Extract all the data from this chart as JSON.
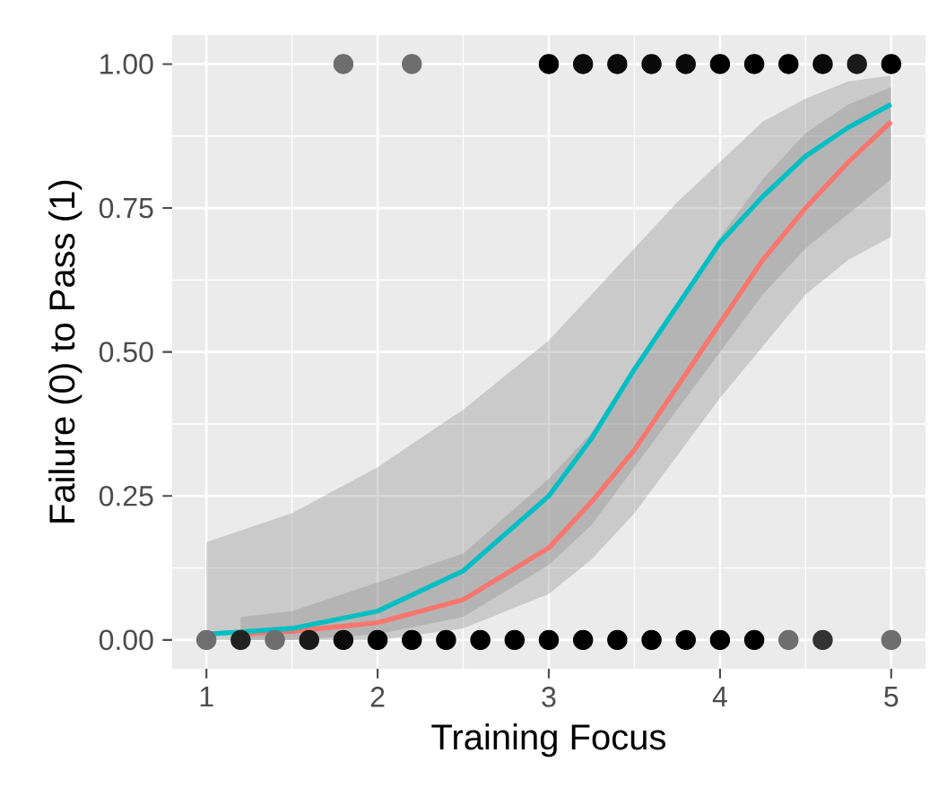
{
  "chart_data": {
    "type": "line",
    "xlabel": "Training Focus",
    "ylabel": "Failure (0) to Pass (1)",
    "xlim": [
      0.8,
      5.2
    ],
    "ylim": [
      -0.05,
      1.05
    ],
    "xticks": [
      1,
      2,
      3,
      4,
      5
    ],
    "yticks": [
      {
        "value": 0,
        "label": "0.00"
      },
      {
        "value": 0.25,
        "label": "0.25"
      },
      {
        "value": 0.5,
        "label": "0.50"
      },
      {
        "value": 0.75,
        "label": "0.75"
      },
      {
        "value": 1,
        "label": "1.00"
      }
    ],
    "grid": true,
    "series": [
      {
        "type": "scatter",
        "marker": "circle",
        "x": [
          1.8,
          2.2,
          3.0,
          3.2,
          3.4,
          3.6,
          3.8,
          4.0,
          4.2,
          4.4,
          4.6,
          4.8,
          5.0,
          1.0,
          1.2,
          1.4,
          1.6,
          1.8,
          2.0,
          2.2,
          2.4,
          2.6,
          2.8,
          3.0,
          3.2,
          3.4,
          3.6,
          3.8,
          4.0,
          4.2,
          4.4,
          4.6,
          5.0
        ],
        "values": [
          1,
          1,
          1,
          1,
          1,
          1,
          1,
          1,
          1,
          1,
          1,
          1,
          1,
          0,
          0,
          0,
          0,
          0,
          0,
          0,
          0,
          0,
          0,
          0,
          0,
          0,
          0,
          0,
          0,
          0,
          0,
          0,
          0
        ],
        "colors": [
          "#6e6e6e",
          "#6e6e6e",
          "#000000",
          "#0a0a0a",
          "#0a0a0a",
          "#0a0a0a",
          "#0a0a0a",
          "#000000",
          "#000000",
          "#000000",
          "#0a0a0a",
          "#1a1a1a",
          "#000000",
          "#6e6e6e",
          "#222222",
          "#6e6e6e",
          "#1a1a1a",
          "#0a0a0a",
          "#000000",
          "#000000",
          "#000000",
          "#000000",
          "#000000",
          "#000000",
          "#000000",
          "#000000",
          "#000000",
          "#000000",
          "#000000",
          "#000000",
          "#6e6e6e",
          "#333333",
          "#6e6e6e"
        ]
      },
      {
        "color": "#f8766d",
        "x": [
          1.2,
          1.5,
          2.0,
          2.5,
          3.0,
          3.25,
          3.5,
          3.75,
          4.0,
          4.25,
          4.5,
          4.75,
          5.0
        ],
        "values": [
          0.01,
          0.015,
          0.03,
          0.07,
          0.16,
          0.24,
          0.33,
          0.44,
          0.55,
          0.66,
          0.75,
          0.83,
          0.9
        ],
        "lower": [
          0.0,
          0.0,
          0.0,
          0.02,
          0.08,
          0.14,
          0.22,
          0.32,
          0.42,
          0.51,
          0.6,
          0.66,
          0.7
        ],
        "upper": [
          0.04,
          0.05,
          0.1,
          0.15,
          0.28,
          0.36,
          0.47,
          0.58,
          0.7,
          0.8,
          0.88,
          0.93,
          0.96
        ]
      },
      {
        "color": "#00bfc4",
        "x": [
          1.0,
          1.5,
          2.0,
          2.5,
          3.0,
          3.25,
          3.5,
          3.75,
          4.0,
          4.25,
          4.5,
          4.75,
          5.0
        ],
        "values": [
          0.01,
          0.02,
          0.05,
          0.12,
          0.25,
          0.35,
          0.47,
          0.58,
          0.69,
          0.77,
          0.84,
          0.89,
          0.93
        ],
        "lower": [
          0.0,
          0.0,
          0.01,
          0.04,
          0.13,
          0.2,
          0.3,
          0.4,
          0.5,
          0.6,
          0.68,
          0.74,
          0.8
        ],
        "upper": [
          0.17,
          0.22,
          0.3,
          0.4,
          0.52,
          0.6,
          0.68,
          0.76,
          0.83,
          0.9,
          0.94,
          0.97,
          0.98
        ]
      }
    ]
  }
}
